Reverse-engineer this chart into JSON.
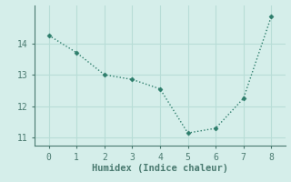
{
  "x": [
    0,
    1,
    2,
    3,
    4,
    5,
    6,
    7,
    8
  ],
  "y": [
    14.25,
    13.7,
    13.0,
    12.85,
    12.55,
    11.15,
    11.3,
    12.25,
    14.85
  ],
  "line_color": "#2d7d6b",
  "marker_color": "#2d7d6b",
  "background_color": "#d5eeea",
  "grid_color": "#b8ddd7",
  "axis_color": "#4a7a70",
  "tick_color": "#4a7a70",
  "xlabel": "Humidex (Indice chaleur)",
  "xlabel_fontsize": 7.5,
  "tick_fontsize": 7,
  "xlim": [
    -0.5,
    8.5
  ],
  "ylim": [
    10.75,
    15.2
  ],
  "yticks": [
    11,
    12,
    13,
    14
  ],
  "xticks": [
    0,
    1,
    2,
    3,
    4,
    5,
    6,
    7,
    8
  ]
}
